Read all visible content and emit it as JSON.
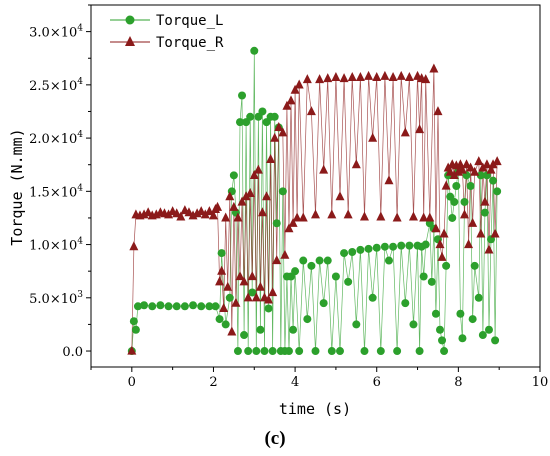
{
  "figure": {
    "caption": "(c)"
  },
  "chart_data": {
    "type": "scatter",
    "xlabel": "time (s)",
    "ylabel": "Torque (N.mm)",
    "xlim": [
      -1,
      10
    ],
    "ylim": [
      -1500,
      32500
    ],
    "x_ticks": [
      0,
      2,
      4,
      6,
      8,
      10
    ],
    "x_tick_labels": [
      "0",
      "2",
      "4",
      "6",
      "8",
      "10"
    ],
    "y_ticks": [
      0,
      5000,
      10000,
      15000,
      20000,
      25000,
      30000
    ],
    "y_tick_labels": [
      {
        "mantissa": "0.0",
        "exp": ""
      },
      {
        "mantissa": "5.0×10",
        "exp": "3"
      },
      {
        "mantissa": "1.0×10",
        "exp": "4"
      },
      {
        "mantissa": "1.5×10",
        "exp": "4"
      },
      {
        "mantissa": "2.0×10",
        "exp": "4"
      },
      {
        "mantissa": "2.5×10",
        "exp": "4"
      },
      {
        "mantissa": "3.0×10",
        "exp": "4"
      }
    ],
    "grid": false,
    "legend_position": "top-left",
    "series": [
      {
        "name": "Torque_L",
        "marker": "circle",
        "color": "#2ca02c",
        "points": [
          [
            0.0,
            0
          ],
          [
            0.05,
            2800
          ],
          [
            0.1,
            2000
          ],
          [
            0.15,
            4200
          ],
          [
            0.3,
            4300
          ],
          [
            0.5,
            4200
          ],
          [
            0.7,
            4300
          ],
          [
            0.9,
            4200
          ],
          [
            1.1,
            4200
          ],
          [
            1.3,
            4200
          ],
          [
            1.5,
            4300
          ],
          [
            1.7,
            4200
          ],
          [
            1.9,
            4200
          ],
          [
            2.05,
            4200
          ],
          [
            2.15,
            3000
          ],
          [
            2.2,
            9200
          ],
          [
            2.3,
            2500
          ],
          [
            2.4,
            5000
          ],
          [
            2.45,
            15000
          ],
          [
            2.5,
            16500
          ],
          [
            2.55,
            13000
          ],
          [
            2.6,
            0
          ],
          [
            2.65,
            21500
          ],
          [
            2.7,
            24000
          ],
          [
            2.75,
            1500
          ],
          [
            2.8,
            21500
          ],
          [
            2.85,
            0
          ],
          [
            2.9,
            22000
          ],
          [
            2.95,
            5500
          ],
          [
            3.0,
            28200
          ],
          [
            3.05,
            0
          ],
          [
            3.1,
            22000
          ],
          [
            3.15,
            2000
          ],
          [
            3.2,
            22500
          ],
          [
            3.25,
            0
          ],
          [
            3.3,
            21500
          ],
          [
            3.35,
            4000
          ],
          [
            3.4,
            22000
          ],
          [
            3.45,
            0
          ],
          [
            3.5,
            22000
          ],
          [
            3.55,
            12000
          ],
          [
            3.6,
            21000
          ],
          [
            3.65,
            0
          ],
          [
            3.7,
            15000
          ],
          [
            3.75,
            0
          ],
          [
            3.8,
            7000
          ],
          [
            3.85,
            0
          ],
          [
            3.9,
            7000
          ],
          [
            3.95,
            2000
          ],
          [
            4.0,
            7500
          ],
          [
            4.1,
            0
          ],
          [
            4.2,
            8500
          ],
          [
            4.3,
            3000
          ],
          [
            4.4,
            8000
          ],
          [
            4.5,
            0
          ],
          [
            4.6,
            8500
          ],
          [
            4.7,
            4500
          ],
          [
            4.8,
            8500
          ],
          [
            4.9,
            0
          ],
          [
            5.0,
            7000
          ],
          [
            5.1,
            0
          ],
          [
            5.2,
            9200
          ],
          [
            5.3,
            6500
          ],
          [
            5.4,
            9300
          ],
          [
            5.5,
            2500
          ],
          [
            5.6,
            9500
          ],
          [
            5.7,
            0
          ],
          [
            5.8,
            9600
          ],
          [
            5.9,
            5000
          ],
          [
            6.0,
            9700
          ],
          [
            6.1,
            0
          ],
          [
            6.2,
            9800
          ],
          [
            6.3,
            8500
          ],
          [
            6.4,
            9800
          ],
          [
            6.5,
            0
          ],
          [
            6.6,
            9900
          ],
          [
            6.7,
            4500
          ],
          [
            6.8,
            9900
          ],
          [
            6.9,
            2500
          ],
          [
            7.0,
            9900
          ],
          [
            7.05,
            0
          ],
          [
            7.1,
            9800
          ],
          [
            7.15,
            7000
          ],
          [
            7.2,
            10000
          ],
          [
            7.3,
            12000
          ],
          [
            7.35,
            6500
          ],
          [
            7.4,
            11500
          ],
          [
            7.45,
            3500
          ],
          [
            7.5,
            10500
          ],
          [
            7.55,
            2000
          ],
          [
            7.6,
            1000
          ],
          [
            7.65,
            0
          ],
          [
            7.7,
            8000
          ],
          [
            7.75,
            16500
          ],
          [
            7.8,
            14500
          ],
          [
            7.85,
            12500
          ],
          [
            7.9,
            14000
          ],
          [
            7.95,
            15500
          ],
          [
            8.0,
            17000
          ],
          [
            8.05,
            3500
          ],
          [
            8.1,
            1200
          ],
          [
            8.15,
            14000
          ],
          [
            8.2,
            16500
          ],
          [
            8.3,
            15500
          ],
          [
            8.35,
            3000
          ],
          [
            8.4,
            8000
          ],
          [
            8.5,
            5000
          ],
          [
            8.55,
            16500
          ],
          [
            8.6,
            1500
          ],
          [
            8.65,
            13000
          ],
          [
            8.7,
            16500
          ],
          [
            8.75,
            2000
          ],
          [
            8.8,
            10500
          ],
          [
            8.85,
            16000
          ],
          [
            8.9,
            1000
          ],
          [
            8.95,
            15000
          ]
        ]
      },
      {
        "name": "Torque_R",
        "marker": "triangle",
        "color": "#8b1a1a",
        "points": [
          [
            0.0,
            0
          ],
          [
            0.05,
            9800
          ],
          [
            0.1,
            12800
          ],
          [
            0.2,
            12700
          ],
          [
            0.3,
            12800
          ],
          [
            0.4,
            13000
          ],
          [
            0.5,
            12700
          ],
          [
            0.6,
            12800
          ],
          [
            0.7,
            13000
          ],
          [
            0.8,
            12900
          ],
          [
            0.9,
            12800
          ],
          [
            1.0,
            13100
          ],
          [
            1.1,
            12900
          ],
          [
            1.2,
            12600
          ],
          [
            1.3,
            13200
          ],
          [
            1.4,
            13000
          ],
          [
            1.5,
            12700
          ],
          [
            1.6,
            12900
          ],
          [
            1.7,
            13100
          ],
          [
            1.8,
            12800
          ],
          [
            1.9,
            13100
          ],
          [
            2.0,
            12700
          ],
          [
            2.05,
            13300
          ],
          [
            2.1,
            13500
          ],
          [
            2.15,
            6500
          ],
          [
            2.2,
            7500
          ],
          [
            2.25,
            4000
          ],
          [
            2.3,
            12500
          ],
          [
            2.35,
            6000
          ],
          [
            2.4,
            14500
          ],
          [
            2.45,
            1800
          ],
          [
            2.5,
            13500
          ],
          [
            2.55,
            4500
          ],
          [
            2.6,
            12500
          ],
          [
            2.65,
            7000
          ],
          [
            2.7,
            14000
          ],
          [
            2.75,
            6500
          ],
          [
            2.8,
            14500
          ],
          [
            2.85,
            5000
          ],
          [
            2.9,
            14800
          ],
          [
            2.95,
            7000
          ],
          [
            3.0,
            16500
          ],
          [
            3.05,
            5000
          ],
          [
            3.1,
            17000
          ],
          [
            3.15,
            6000
          ],
          [
            3.2,
            13000
          ],
          [
            3.25,
            5000
          ],
          [
            3.3,
            14500
          ],
          [
            3.35,
            4800
          ],
          [
            3.4,
            18000
          ],
          [
            3.45,
            5500
          ],
          [
            3.5,
            20000
          ],
          [
            3.55,
            8500
          ],
          [
            3.6,
            21000
          ],
          [
            3.7,
            20500
          ],
          [
            3.75,
            9000
          ],
          [
            3.8,
            23000
          ],
          [
            3.85,
            11500
          ],
          [
            3.9,
            23500
          ],
          [
            3.95,
            12000
          ],
          [
            4.0,
            24500
          ],
          [
            4.05,
            12500
          ],
          [
            4.1,
            25000
          ],
          [
            4.2,
            12500
          ],
          [
            4.3,
            25500
          ],
          [
            4.4,
            22500
          ],
          [
            4.5,
            12800
          ],
          [
            4.6,
            25500
          ],
          [
            4.7,
            17000
          ],
          [
            4.8,
            25600
          ],
          [
            4.9,
            12800
          ],
          [
            5.0,
            25700
          ],
          [
            5.1,
            14500
          ],
          [
            5.2,
            25600
          ],
          [
            5.3,
            12800
          ],
          [
            5.4,
            25700
          ],
          [
            5.5,
            17500
          ],
          [
            5.6,
            25700
          ],
          [
            5.7,
            12600
          ],
          [
            5.8,
            25800
          ],
          [
            5.9,
            20000
          ],
          [
            6.0,
            25700
          ],
          [
            6.1,
            12600
          ],
          [
            6.2,
            25800
          ],
          [
            6.3,
            16000
          ],
          [
            6.4,
            25700
          ],
          [
            6.5,
            12500
          ],
          [
            6.6,
            25800
          ],
          [
            6.7,
            20500
          ],
          [
            6.8,
            25700
          ],
          [
            6.9,
            12600
          ],
          [
            7.0,
            25800
          ],
          [
            7.05,
            20800
          ],
          [
            7.1,
            25600
          ],
          [
            7.15,
            12500
          ],
          [
            7.2,
            25500
          ],
          [
            7.3,
            12500
          ],
          [
            7.4,
            26500
          ],
          [
            7.45,
            11500
          ],
          [
            7.5,
            22500
          ],
          [
            7.55,
            10000
          ],
          [
            7.6,
            8800
          ],
          [
            7.65,
            11000
          ],
          [
            7.7,
            15500
          ],
          [
            7.75,
            17200
          ],
          [
            7.8,
            16800
          ],
          [
            7.85,
            17500
          ],
          [
            7.9,
            16500
          ],
          [
            7.95,
            17400
          ],
          [
            8.0,
            16800
          ],
          [
            8.05,
            17500
          ],
          [
            8.1,
            17000
          ],
          [
            8.15,
            12800
          ],
          [
            8.2,
            17500
          ],
          [
            8.25,
            10000
          ],
          [
            8.3,
            17200
          ],
          [
            8.35,
            12000
          ],
          [
            8.4,
            16800
          ],
          [
            8.5,
            17800
          ],
          [
            8.55,
            11000
          ],
          [
            8.6,
            17200
          ],
          [
            8.65,
            14000
          ],
          [
            8.7,
            17500
          ],
          [
            8.75,
            9500
          ],
          [
            8.8,
            17000
          ],
          [
            8.85,
            17500
          ],
          [
            8.9,
            11000
          ],
          [
            8.95,
            17800
          ]
        ]
      }
    ]
  }
}
